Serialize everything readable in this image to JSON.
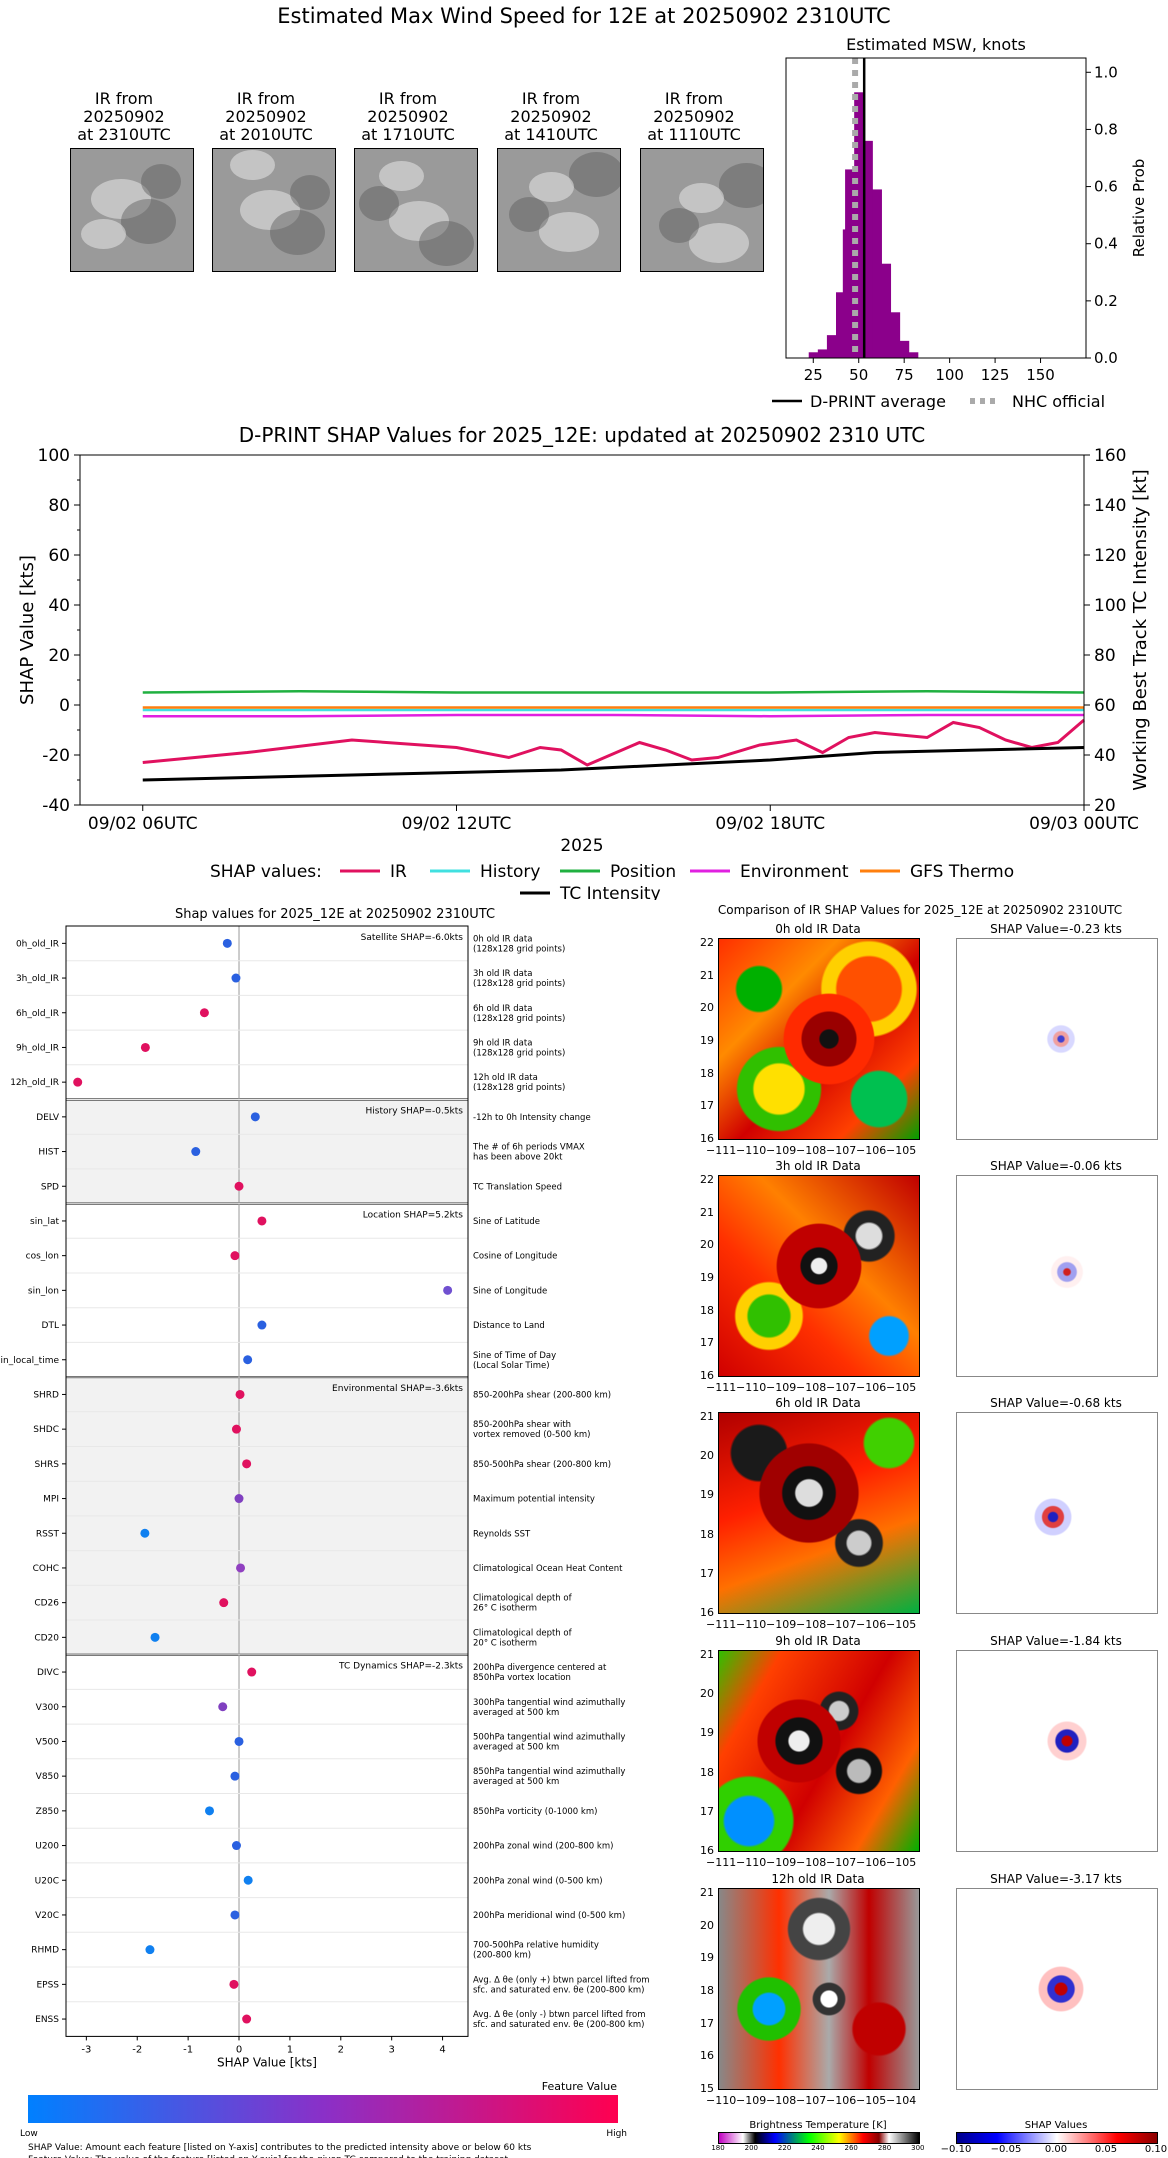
{
  "main_title": "Estimated Max Wind Speed for 12E at 20250902 2310UTC",
  "thumbnails": [
    {
      "label": "IR from\n20250902\nat 2310UTC"
    },
    {
      "label": "IR from\n20250902\nat 2010UTC"
    },
    {
      "label": "IR from\n20250902\nat 1710UTC"
    },
    {
      "label": "IR from\n20250902\nat 1410UTC"
    },
    {
      "label": "IR from\n20250902\nat 1110UTC"
    }
  ],
  "histogram": {
    "title": "Estimated MSW, knots",
    "ylabel": "Relative Prob",
    "xticks": [
      "25",
      "50",
      "75",
      "100",
      "125",
      "150"
    ],
    "yticks": [
      "0.0",
      "0.2",
      "0.4",
      "0.6",
      "0.8",
      "1.0"
    ],
    "legend_dprint": "D-PRINT average",
    "legend_nhc": "NHC official"
  },
  "timeseries": {
    "title": "D-PRINT SHAP Values for 2025_12E: updated at 20250902 2310 UTC",
    "ylabel_left": "SHAP Value [kts]",
    "ylabel_right": "Working Best Track TC Intensity [kt]",
    "xlabel": "2025",
    "xticks": [
      "09/02 06UTC",
      "09/02 12UTC",
      "09/02 18UTC",
      "09/03 00UTC"
    ],
    "yticks_left": [
      "-40",
      "-20",
      "0",
      "20",
      "40",
      "60",
      "80",
      "100"
    ],
    "yticks_right": [
      "20",
      "40",
      "60",
      "80",
      "100",
      "120",
      "140",
      "160"
    ],
    "legend_prefix": "SHAP values:",
    "legend": [
      "IR",
      "History",
      "Position",
      "Environment",
      "GFS Thermo",
      "TC Intensity"
    ]
  },
  "shap_panel": {
    "title": "Shap values for 2025_12E at 20250902 2310UTC",
    "xlabel": "SHAP Value [kts]",
    "xticks": [
      "-3",
      "-2",
      "-1",
      "0",
      "1",
      "2",
      "3",
      "4"
    ],
    "group_labels": [
      "Satellite SHAP=-6.0kts",
      "History SHAP=-0.5kts",
      "Location SHAP=5.2kts",
      "Environmental SHAP=-3.6kts",
      "TC Dynamics SHAP=-2.3kts"
    ],
    "features": [
      {
        "name": "0h_old_IR",
        "desc": "0h old IR data\n(128x128 grid points)"
      },
      {
        "name": "3h_old_IR",
        "desc": "3h old IR data\n(128x128 grid points)"
      },
      {
        "name": "6h_old_IR",
        "desc": "6h old IR data\n(128x128 grid points)"
      },
      {
        "name": "9h_old_IR",
        "desc": "9h old IR data\n(128x128 grid points)"
      },
      {
        "name": "12h_old_IR",
        "desc": "12h old IR data\n(128x128 grid points)"
      },
      {
        "name": "DELV",
        "desc": "-12h to 0h Intensity change"
      },
      {
        "name": "HIST",
        "desc": "The # of 6h periods VMAX\nhas been above 20kt"
      },
      {
        "name": "SPD",
        "desc": "TC Translation Speed"
      },
      {
        "name": "sin_lat",
        "desc": "Sine of Latitude"
      },
      {
        "name": "cos_lon",
        "desc": "Cosine of Longitude"
      },
      {
        "name": "sin_lon",
        "desc": "Sine of Longitude"
      },
      {
        "name": "DTL",
        "desc": "Distance to Land"
      },
      {
        "name": "sin_local_time",
        "desc": "Sine of Time of Day\n(Local Solar Time)"
      },
      {
        "name": "SHRD",
        "desc": "850-200hPa shear (200-800 km)"
      },
      {
        "name": "SHDC",
        "desc": "850-200hPa shear with\nvortex removed (0-500 km)"
      },
      {
        "name": "SHRS",
        "desc": "850-500hPa shear (200-800 km)"
      },
      {
        "name": "MPI",
        "desc": "Maximum potential intensity"
      },
      {
        "name": "RSST",
        "desc": "Reynolds SST"
      },
      {
        "name": "COHC",
        "desc": "Climatological Ocean Heat Content"
      },
      {
        "name": "CD26",
        "desc": "Climatological depth of\n26° C isotherm"
      },
      {
        "name": "CD20",
        "desc": "Climatological depth of\n20° C isotherm"
      },
      {
        "name": "DIVC",
        "desc": "200hPa divergence centered at\n850hPa vortex location"
      },
      {
        "name": "V300",
        "desc": "300hPa tangential wind azimuthally\naveraged at 500 km"
      },
      {
        "name": "V500",
        "desc": "500hPa tangential wind azimuthally\naveraged at 500 km"
      },
      {
        "name": "V850",
        "desc": "850hPa tangential wind azimuthally\naveraged at 500 km"
      },
      {
        "name": "Z850",
        "desc": "850hPa vorticity (0-1000 km)"
      },
      {
        "name": "U200",
        "desc": "200hPa zonal wind (200-800 km)"
      },
      {
        "name": "U20C",
        "desc": "200hPa zonal wind (0-500 km)"
      },
      {
        "name": "V20C",
        "desc": "200hPa meridional wind (0-500 km)"
      },
      {
        "name": "RHMD",
        "desc": "700-500hPa relative humidity\n(200-800 km)"
      },
      {
        "name": "EPSS",
        "desc": "Avg. Δ θe (only +) btwn parcel lifted from\nsfc. and saturated env. θe (200-800 km)"
      },
      {
        "name": "ENSS",
        "desc": "Avg. Δ θe (only -) btwn parcel lifted from\nsfc. and saturated env. θe (200-800 km)"
      }
    ],
    "colorbar_title": "Feature Value",
    "colorbar_low": "Low",
    "colorbar_high": "High",
    "footnote1": "SHAP Value: Amount each feature [listed on Y-axis] contributes to the predicted intensity above or below 60 kts",
    "footnote2": "Feature Value: The value of the feature [listed on Y-axis] for the given TC compared to the training dataset"
  },
  "ir_panel": {
    "title": "Comparison of IR SHAP Values for 2025_12E at 20250902 2310UTC",
    "rows": [
      {
        "ir_title": "0h old IR Data",
        "shap_title": "SHAP Value=-0.23 kts",
        "yticks": [
          "22",
          "21",
          "20",
          "19",
          "18",
          "17",
          "16"
        ],
        "xticks": [
          "−111",
          "−110",
          "−109",
          "−108",
          "−107",
          "−106",
          "−105"
        ]
      },
      {
        "ir_title": "3h old IR Data",
        "shap_title": "SHAP Value=-0.06 kts",
        "yticks": [
          "22",
          "21",
          "20",
          "19",
          "18",
          "17",
          "16"
        ],
        "xticks": [
          "−111",
          "−110",
          "−109",
          "−108",
          "−107",
          "−106",
          "−105"
        ]
      },
      {
        "ir_title": "6h old IR Data",
        "shap_title": "SHAP Value=-0.68 kts",
        "yticks": [
          "21",
          "20",
          "19",
          "18",
          "17",
          "16"
        ],
        "xticks": [
          "−111",
          "−110",
          "−109",
          "−108",
          "−107",
          "−106",
          "−105"
        ]
      },
      {
        "ir_title": "9h old IR Data",
        "shap_title": "SHAP Value=-1.84 kts",
        "yticks": [
          "21",
          "20",
          "19",
          "18",
          "17",
          "16"
        ],
        "xticks": [
          "−111",
          "−110",
          "−109",
          "−108",
          "−107",
          "−106",
          "−105"
        ]
      },
      {
        "ir_title": "12h old IR Data",
        "shap_title": "SHAP Value=-3.17 kts",
        "yticks": [
          "21",
          "20",
          "19",
          "18",
          "17",
          "16",
          "15"
        ],
        "xticks": [
          "−110",
          "−109",
          "−108",
          "−107",
          "−106",
          "−105",
          "−104"
        ]
      }
    ],
    "bt_title": "Brightness Temperature [K]",
    "bt_ticks": [
      "180",
      "200",
      "220",
      "240",
      "260",
      "280",
      "300"
    ],
    "sv_title": "SHAP Values",
    "sv_ticks": [
      "−0.10",
      "−0.05",
      "0.00",
      "0.05",
      "0.10"
    ]
  },
  "chart_data": [
    {
      "type": "bar",
      "title": "Estimated MSW, knots",
      "xlabel": "",
      "ylabel": "Relative Prob",
      "xlim": [
        10,
        175
      ],
      "ylim": [
        0,
        1.05
      ],
      "bins": [
        {
          "x": 25,
          "w": 5,
          "y": 0.02
        },
        {
          "x": 30,
          "w": 5,
          "y": 0.03
        },
        {
          "x": 35,
          "w": 5,
          "y": 0.08
        },
        {
          "x": 40,
          "w": 5,
          "y": 0.23
        },
        {
          "x": 42.5,
          "w": 2.5,
          "y": 0.45
        },
        {
          "x": 45,
          "w": 5,
          "y": 0.66
        },
        {
          "x": 50,
          "w": 5,
          "y": 0.93
        },
        {
          "x": 55,
          "w": 5,
          "y": 0.76
        },
        {
          "x": 60,
          "w": 5,
          "y": 0.59
        },
        {
          "x": 65,
          "w": 5,
          "y": 0.33
        },
        {
          "x": 70,
          "w": 5,
          "y": 0.16
        },
        {
          "x": 75,
          "w": 5,
          "y": 0.06
        },
        {
          "x": 80,
          "w": 5,
          "y": 0.02
        }
      ],
      "dprint_avg": 53,
      "nhc_official": 48,
      "series": [
        {
          "name": "D-PRINT average"
        },
        {
          "name": "NHC official"
        }
      ]
    },
    {
      "type": "line",
      "title": "D-PRINT SHAP Values for 2025_12E: updated at 20250902 2310 UTC",
      "xlabel": "2025",
      "ylabel": "SHAP Value [kts]",
      "xlim": [
        0,
        18
      ],
      "ylim": [
        -40,
        100
      ],
      "y2lim": [
        20,
        160
      ],
      "series": [
        {
          "name": "IR",
          "color": "#e0115f",
          "x": [
            0,
            2,
            4,
            6,
            7,
            7.6,
            8,
            8.5,
            9.5,
            10,
            10.5,
            11,
            11.8,
            12.5,
            13,
            13.5,
            14,
            15,
            15.5,
            16,
            16.5,
            17,
            17.5,
            18
          ],
          "values": [
            -23,
            -19,
            -14,
            -17,
            -21,
            -17,
            -18,
            -24,
            -15,
            -18,
            -22,
            -21,
            -16,
            -14,
            -19,
            -13,
            -11,
            -13,
            -7,
            -9,
            -14,
            -17,
            -15,
            -6
          ]
        },
        {
          "name": "History",
          "color": "#40e0e0",
          "x": [
            0,
            18
          ],
          "values": [
            -2,
            -2
          ]
        },
        {
          "name": "Position",
          "color": "#20b040",
          "x": [
            0,
            3,
            6,
            9,
            12,
            15,
            18
          ],
          "values": [
            5,
            5.5,
            5,
            5,
            5,
            5.5,
            5
          ]
        },
        {
          "name": "Environment",
          "color": "#e020e0",
          "x": [
            0,
            3,
            6,
            9,
            12,
            15,
            18
          ],
          "values": [
            -4.5,
            -4.5,
            -4,
            -4,
            -4.5,
            -4,
            -4
          ]
        },
        {
          "name": "GFS Thermo",
          "color": "#ff7f0e",
          "x": [
            0,
            3,
            6,
            9,
            12,
            15,
            18
          ],
          "values": [
            -1,
            -1,
            -1,
            -1,
            -1,
            -1,
            -1
          ]
        },
        {
          "name": "TC Intensity",
          "color": "#000000",
          "axis": "right",
          "x": [
            0,
            2,
            4,
            6,
            8,
            10,
            12,
            14,
            16,
            18
          ],
          "values": [
            30,
            31,
            32,
            33,
            34,
            36,
            38,
            41,
            42,
            43
          ]
        }
      ]
    },
    {
      "type": "scatter",
      "title": "Shap values for 2025_12E at 20250902 2310UTC",
      "xlabel": "SHAP Value [kts]",
      "xlim": [
        -3.4,
        4.5
      ],
      "categories": [
        "0h_old_IR",
        "3h_old_IR",
        "6h_old_IR",
        "9h_old_IR",
        "12h_old_IR",
        "DELV",
        "HIST",
        "SPD",
        "sin_lat",
        "cos_lon",
        "sin_lon",
        "DTL",
        "sin_local_time",
        "SHRD",
        "SHDC",
        "SHRS",
        "MPI",
        "RSST",
        "COHC",
        "CD26",
        "CD20",
        "DIVC",
        "V300",
        "V500",
        "V850",
        "Z850",
        "U200",
        "U20C",
        "V20C",
        "RHMD",
        "EPSS",
        "ENSS"
      ],
      "values": [
        -0.23,
        -0.06,
        -0.68,
        -1.84,
        -3.17,
        0.32,
        -0.85,
        0.0,
        0.45,
        -0.08,
        4.1,
        0.45,
        0.17,
        0.02,
        -0.05,
        0.15,
        0.0,
        -1.85,
        0.03,
        -0.3,
        -1.65,
        0.25,
        -0.32,
        0.0,
        -0.08,
        -0.58,
        -0.05,
        0.18,
        -0.08,
        -1.75,
        -0.1,
        0.15
      ],
      "colors": [
        "#2a60e0",
        "#2a60e0",
        "#e0115f",
        "#e0115f",
        "#e0115f",
        "#2a60e0",
        "#2a60e0",
        "#e0115f",
        "#e0115f",
        "#e0115f",
        "#7050d0",
        "#2a60e0",
        "#2a60e0",
        "#e0115f",
        "#e0115f",
        "#e0115f",
        "#8040c0",
        "#1080f0",
        "#9040c0",
        "#e0115f",
        "#1080f0",
        "#e0115f",
        "#8040c0",
        "#2a60e0",
        "#2a60e0",
        "#1080f0",
        "#2a60e0",
        "#1080f0",
        "#2a60e0",
        "#1080f0",
        "#e0115f",
        "#e0115f"
      ]
    }
  ]
}
